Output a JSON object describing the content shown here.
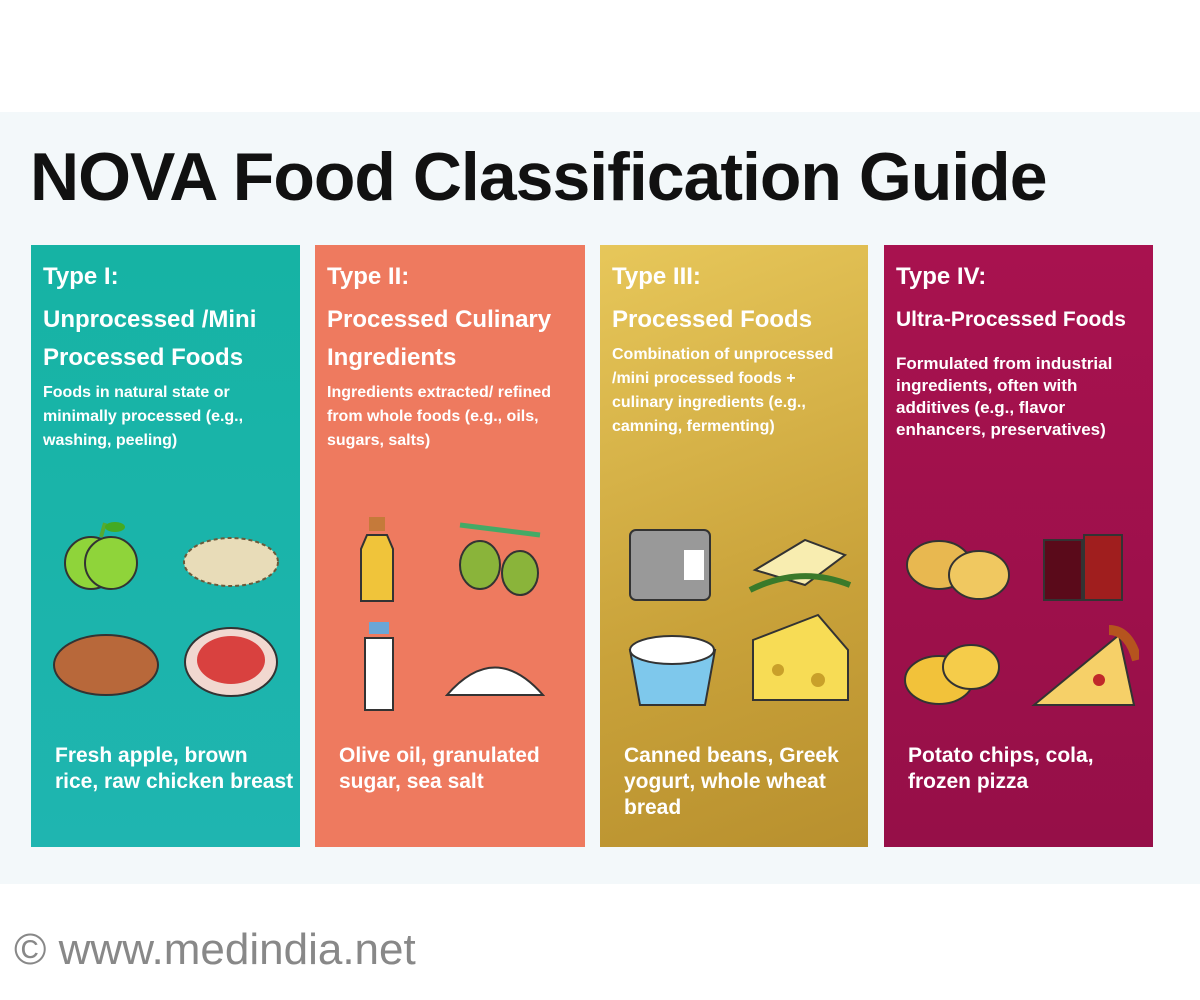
{
  "title": "NOVA Food Classification Guide",
  "cards": [
    {
      "type": "Type I:",
      "name": "Unprocessed /Mini Processed Foods",
      "desc": "Foods in natural state or minimally processed (e.g., washing, peeling)",
      "examples": "Fresh apple, brown rice, raw chicken breast",
      "icons": [
        "apple-icon",
        "rice-icon",
        "potato-icon",
        "meat-icon"
      ],
      "color": "#16b3a4"
    },
    {
      "type": "Type II:",
      "name": "Processed Culinary Ingredients",
      "desc": "Ingredients extracted/ refined from whole foods (e.g., oils, sugars, salts)",
      "examples": "Olive oil, granulated sugar, sea salt",
      "icons": [
        "oil-bottle-icon",
        "olives-icon",
        "milk-bottle-icon",
        "salt-pile-icon"
      ],
      "color": "#ee7a5f"
    },
    {
      "type": "Type III:",
      "name": "Processed Foods",
      "desc": "Combination of unprocessed /mini processed foods + culinary ingredients (e.g., camning, fermenting)",
      "examples": "Canned beans, Greek yogurt, whole wheat bread",
      "icons": [
        "can-icon",
        "butter-icon",
        "yogurt-icon",
        "cheese-icon"
      ],
      "color": "#d4b04a"
    },
    {
      "type": "Type IV:",
      "name": "Ultra-Processed Foods",
      "desc": "Formulated from industrial ingredients, often with additives (e.g., flavor enhancers, preservatives)",
      "examples": "Potato chips, cola, frozen pizza",
      "icons": [
        "chips-icon",
        "cola-icon",
        "chips-pile-icon",
        "pizza-icon"
      ],
      "color": "#a8124f"
    }
  ],
  "footer": "©  www.medindia.net"
}
